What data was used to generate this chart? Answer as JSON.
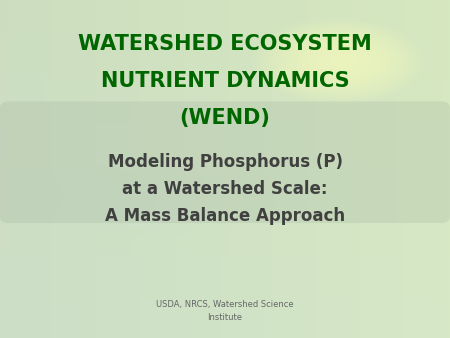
{
  "title_line1": "WATERSHED ECOSYSTEM",
  "title_line2": "NUTRIENT DYNAMICS",
  "title_line3": "(WEND)",
  "title_color": "#006600",
  "subtitle_line1": "Modeling Phosphorus (P)",
  "subtitle_line2": "at a Watershed Scale:",
  "subtitle_line3": "A Mass Balance Approach",
  "subtitle_color": "#404040",
  "footer_line1": "USDA, NRCS, Watershed Science",
  "footer_line2": "Institute",
  "footer_color": "#666666",
  "title_fontsize": 15,
  "subtitle_fontsize": 12,
  "footer_fontsize": 6
}
